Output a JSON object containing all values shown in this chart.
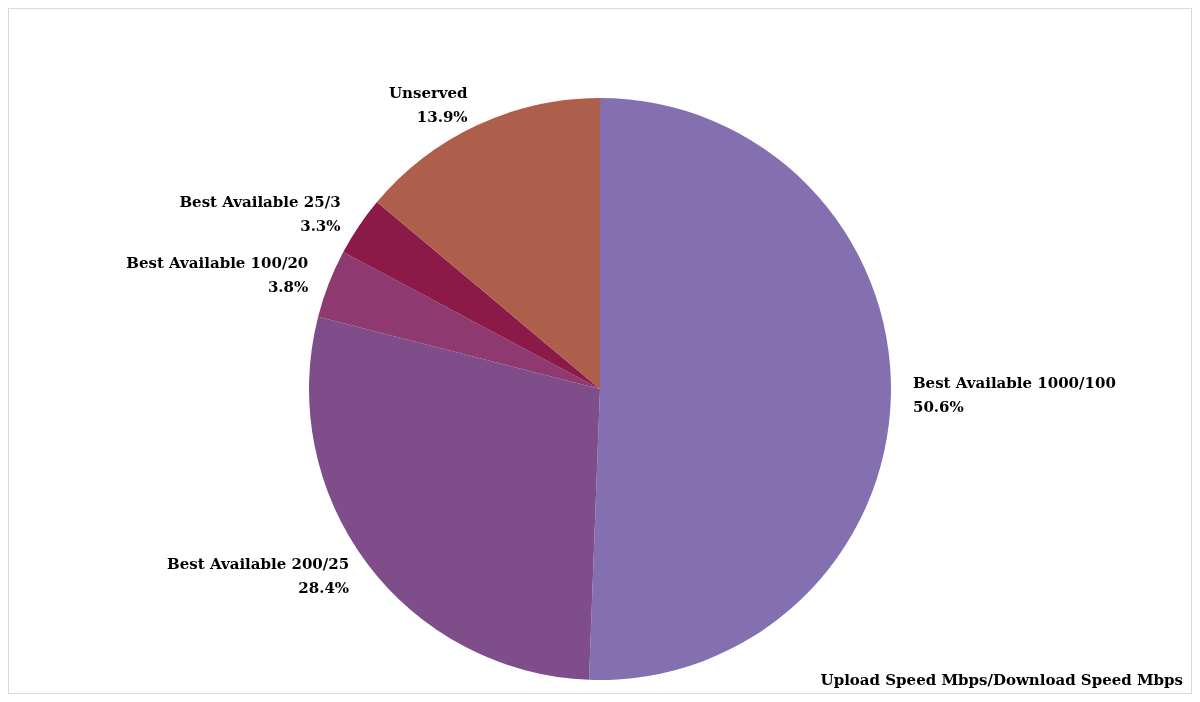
{
  "chart_data": {
    "type": "pie",
    "categories": [
      "Best Available 1000/100",
      "Best Available 200/25",
      "Best Available 100/20",
      "Best Available 25/3",
      "Unserved"
    ],
    "values": [
      50.6,
      28.4,
      3.8,
      3.3,
      13.9
    ],
    "value_labels": [
      "50.6%",
      "28.4%",
      "3.8%",
      "3.3%",
      "13.9%"
    ],
    "colors": [
      "#8470b0",
      "#7f4d8a",
      "#8e3a70",
      "#8b1a48",
      "#ad5f4c"
    ],
    "annotations": [
      "Upload Speed Mbps/Download Speed Mbps"
    ],
    "legend": false
  }
}
